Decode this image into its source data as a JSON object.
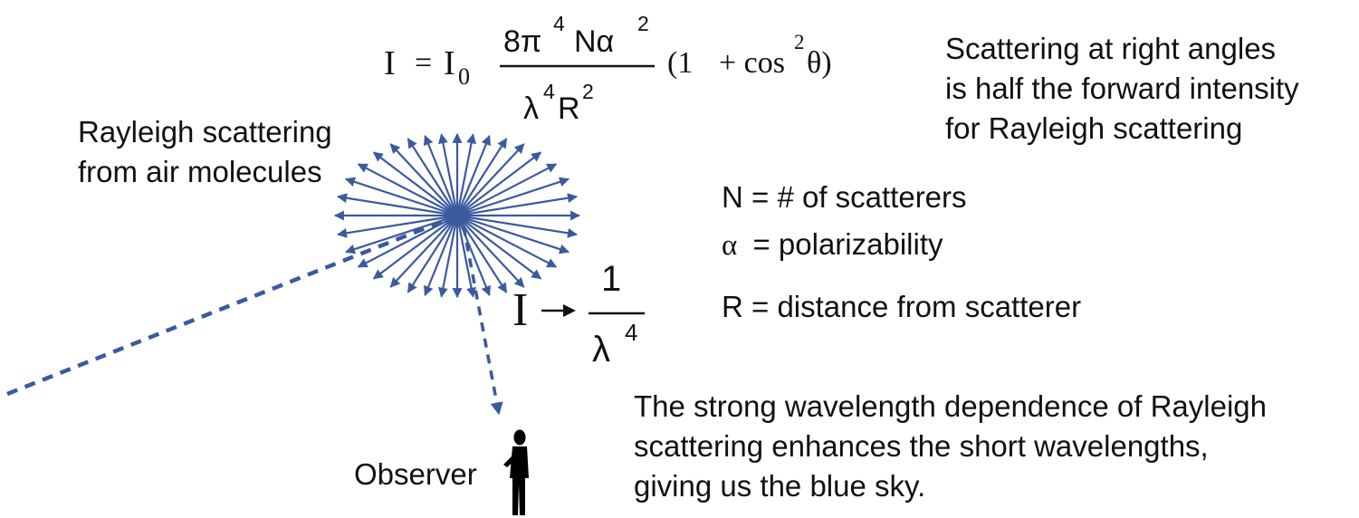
{
  "formula": {
    "lhs": "I",
    "eq": "=",
    "i0_base": "I",
    "i0_sub": "0",
    "num_coeff": "8π",
    "num_exp1": "4",
    "num_var": "Nα",
    "num_exp2": "2",
    "den_lambda": "λ",
    "den_exp1": "4",
    "den_r": "R",
    "den_exp2": "2",
    "paren_open": "(1",
    "plus_cos": "+ cos",
    "cos_exp": "2",
    "theta_close": "θ)"
  },
  "proportional": {
    "lhs": "I",
    "arrow": "→",
    "num": "1",
    "den_lambda": "λ",
    "den_exp": "4"
  },
  "labels": {
    "rayleigh_line1": "Rayleigh scattering",
    "rayleigh_line2": "from air molecules",
    "right_angle_line1": "Scattering at right angles",
    "right_angle_line2": "is half the forward intensity",
    "right_angle_line3": "for Rayleigh scattering",
    "legend_n": "N = # of scatterers",
    "legend_alpha_symbol": "α",
    "legend_alpha_text": "= polarizability",
    "legend_r": "R = distance from scatterer",
    "blue_sky_line1": "The strong wavelength dependence of Rayleigh",
    "blue_sky_line2": "scattering enhances the short wavelengths,",
    "blue_sky_line3": "giving us the blue sky.",
    "observer": "Observer"
  },
  "colors": {
    "arrow_blue": "#3b5a9e",
    "text": "#111111",
    "observer": "#000000"
  },
  "icons": {
    "observer": "person-silhouette-icon"
  }
}
